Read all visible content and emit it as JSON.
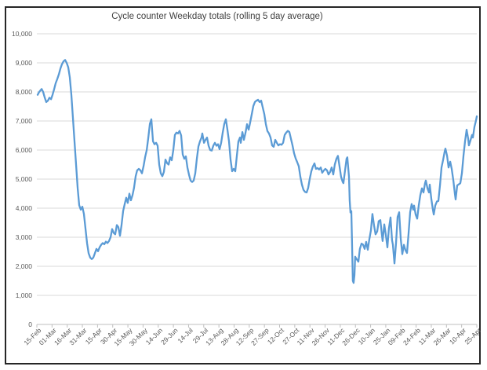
{
  "colors": {
    "background": "#FFFFFF",
    "border": "#262626",
    "grid": "#D9D9D9",
    "axis": "#BFBFBF",
    "tick_text": "#595959",
    "title_text": "#404040",
    "line": "#5B9BD5"
  },
  "chart_data": {
    "type": "line",
    "title": "Cycle counter Weekday totals (rolling 5 day average)",
    "legend": "none",
    "grid": "horizontal",
    "ylim": [
      0,
      10000
    ],
    "y_tick_interval": 1000,
    "y_tick_values": [
      0,
      1000,
      2000,
      3000,
      4000,
      5000,
      6000,
      7000,
      8000,
      9000,
      10000
    ],
    "y_tick_labels": [
      "0",
      "1,000",
      "2,000",
      "3,000",
      "4,000",
      "5,000",
      "6,000",
      "7,000",
      "8,000",
      "9,000",
      "10,000"
    ],
    "x_tick_labels": [
      "15-Feb",
      "01-Mar",
      "16-Mar",
      "31-Mar",
      "15-Apr",
      "30-Apr",
      "15-May",
      "30-May",
      "14-Jun",
      "29-Jun",
      "14-Jul",
      "29-Jul",
      "13-Aug",
      "28-Aug",
      "12-Sep",
      "27-Sep",
      "12-Oct",
      "27-Oct",
      "11-Nov",
      "26-Nov",
      "11-Dec",
      "26-Dec",
      "10-Jan",
      "25-Jan",
      "09-Feb",
      "24-Feb",
      "11-Mar",
      "26-Mar",
      "10-Apr",
      "25-Apr"
    ],
    "x_span_days": 435,
    "x_tick_step_days": 15,
    "line_color": "#5B9BD5",
    "samples": [
      [
        0.8,
        7900
      ],
      [
        2.3,
        8000
      ],
      [
        4.7,
        8100
      ],
      [
        6.2,
        8000
      ],
      [
        7.8,
        7800
      ],
      [
        9.3,
        7650
      ],
      [
        10.9,
        7700
      ],
      [
        12.4,
        7800
      ],
      [
        14,
        7750
      ],
      [
        15.5,
        7900
      ],
      [
        17.1,
        8100
      ],
      [
        18.6,
        8300
      ],
      [
        20.2,
        8450
      ],
      [
        21.7,
        8600
      ],
      [
        23.3,
        8800
      ],
      [
        24.8,
        8950
      ],
      [
        26.4,
        9050
      ],
      [
        27.9,
        9100
      ],
      [
        29.5,
        9000
      ],
      [
        31,
        8850
      ],
      [
        32.6,
        8500
      ],
      [
        34.1,
        7900
      ],
      [
        35.7,
        7100
      ],
      [
        37.2,
        6300
      ],
      [
        38.8,
        5500
      ],
      [
        40.3,
        4700
      ],
      [
        41.9,
        4100
      ],
      [
        43.4,
        3950
      ],
      [
        45,
        4050
      ],
      [
        46.5,
        3800
      ],
      [
        48.1,
        3300
      ],
      [
        49.6,
        2800
      ],
      [
        51.2,
        2450
      ],
      [
        52.7,
        2300
      ],
      [
        54.3,
        2250
      ],
      [
        55.8,
        2300
      ],
      [
        57.4,
        2450
      ],
      [
        58.9,
        2600
      ],
      [
        60.5,
        2520
      ],
      [
        62,
        2650
      ],
      [
        63.6,
        2740
      ],
      [
        65.1,
        2800
      ],
      [
        66.7,
        2760
      ],
      [
        68.2,
        2850
      ],
      [
        69.8,
        2800
      ],
      [
        71.3,
        2870
      ],
      [
        72.9,
        3000
      ],
      [
        74.4,
        3280
      ],
      [
        76,
        3150
      ],
      [
        77.5,
        3100
      ],
      [
        79.1,
        3420
      ],
      [
        80.6,
        3350
      ],
      [
        82.2,
        3050
      ],
      [
        83.7,
        3400
      ],
      [
        85.3,
        3900
      ],
      [
        86.8,
        4130
      ],
      [
        88.4,
        4360
      ],
      [
        89.9,
        4180
      ],
      [
        91.5,
        4500
      ],
      [
        93,
        4270
      ],
      [
        94.6,
        4450
      ],
      [
        96.1,
        4700
      ],
      [
        97.7,
        5100
      ],
      [
        99.2,
        5300
      ],
      [
        100.8,
        5350
      ],
      [
        102.4,
        5300
      ],
      [
        103.9,
        5200
      ],
      [
        105.5,
        5450
      ],
      [
        107,
        5750
      ],
      [
        108.6,
        6000
      ],
      [
        110.1,
        6400
      ],
      [
        111.7,
        6900
      ],
      [
        113.2,
        7060
      ],
      [
        114.8,
        6300
      ],
      [
        116.3,
        6200
      ],
      [
        117.9,
        6250
      ],
      [
        119.4,
        6150
      ],
      [
        121,
        5500
      ],
      [
        122.5,
        5200
      ],
      [
        124.1,
        5100
      ],
      [
        125.6,
        5250
      ],
      [
        127.2,
        5670
      ],
      [
        128.7,
        5550
      ],
      [
        130.3,
        5500
      ],
      [
        131.8,
        5750
      ],
      [
        133.4,
        5650
      ],
      [
        134.9,
        6000
      ],
      [
        136.5,
        6520
      ],
      [
        138,
        6600
      ],
      [
        139.6,
        6570
      ],
      [
        141.1,
        6660
      ],
      [
        142.7,
        6500
      ],
      [
        144.2,
        5850
      ],
      [
        145.8,
        5700
      ],
      [
        147.3,
        5780
      ],
      [
        148.9,
        5400
      ],
      [
        150.4,
        5150
      ],
      [
        152,
        4950
      ],
      [
        153.5,
        4900
      ],
      [
        155.1,
        4950
      ],
      [
        156.6,
        5200
      ],
      [
        158.2,
        5700
      ],
      [
        159.7,
        6120
      ],
      [
        161.3,
        6300
      ],
      [
        162.8,
        6430
      ],
      [
        163.6,
        6570
      ],
      [
        165.2,
        6250
      ],
      [
        166.7,
        6350
      ],
      [
        168.3,
        6430
      ],
      [
        169.8,
        6150
      ],
      [
        171.4,
        6000
      ],
      [
        172.9,
        5980
      ],
      [
        174.5,
        6150
      ],
      [
        176,
        6250
      ],
      [
        177.6,
        6150
      ],
      [
        179.1,
        6200
      ],
      [
        180.7,
        6030
      ],
      [
        182.2,
        6250
      ],
      [
        183.8,
        6600
      ],
      [
        185.3,
        6900
      ],
      [
        186.9,
        7060
      ],
      [
        188.4,
        6700
      ],
      [
        190,
        6300
      ],
      [
        191.5,
        5670
      ],
      [
        193.1,
        5270
      ],
      [
        194.6,
        5350
      ],
      [
        196.2,
        5270
      ],
      [
        197.7,
        5800
      ],
      [
        199.3,
        6300
      ],
      [
        200.8,
        6430
      ],
      [
        201.6,
        6250
      ],
      [
        203.2,
        6620
      ],
      [
        204.7,
        6350
      ],
      [
        206.3,
        6600
      ],
      [
        207.8,
        6890
      ],
      [
        209.4,
        6700
      ],
      [
        210.9,
        6950
      ],
      [
        212.5,
        7240
      ],
      [
        214,
        7510
      ],
      [
        215.6,
        7650
      ],
      [
        217.1,
        7700
      ],
      [
        218.7,
        7730
      ],
      [
        220.2,
        7650
      ],
      [
        221.8,
        7700
      ],
      [
        223.3,
        7470
      ],
      [
        224.9,
        7240
      ],
      [
        226.4,
        6890
      ],
      [
        228,
        6650
      ],
      [
        229.5,
        6570
      ],
      [
        231.1,
        6430
      ],
      [
        232.6,
        6160
      ],
      [
        234.2,
        6110
      ],
      [
        235.7,
        6350
      ],
      [
        237.3,
        6250
      ],
      [
        238.8,
        6160
      ],
      [
        240.4,
        6200
      ],
      [
        241.9,
        6180
      ],
      [
        243.5,
        6250
      ],
      [
        245,
        6520
      ],
      [
        246.6,
        6600
      ],
      [
        248.1,
        6660
      ],
      [
        249.7,
        6620
      ],
      [
        251.2,
        6390
      ],
      [
        252.8,
        6160
      ],
      [
        254.3,
        5890
      ],
      [
        255.9,
        5710
      ],
      [
        257.4,
        5580
      ],
      [
        259,
        5440
      ],
      [
        260.5,
        5080
      ],
      [
        262.1,
        4810
      ],
      [
        263.6,
        4630
      ],
      [
        265.2,
        4560
      ],
      [
        266.7,
        4540
      ],
      [
        268.3,
        4700
      ],
      [
        269.8,
        5000
      ],
      [
        271.4,
        5270
      ],
      [
        272.9,
        5430
      ],
      [
        274.5,
        5540
      ],
      [
        276,
        5350
      ],
      [
        277.6,
        5380
      ],
      [
        279.1,
        5330
      ],
      [
        280.7,
        5400
      ],
      [
        282.2,
        5220
      ],
      [
        283.8,
        5300
      ],
      [
        285.3,
        5350
      ],
      [
        286.9,
        5300
      ],
      [
        288.4,
        5160
      ],
      [
        290,
        5250
      ],
      [
        291.5,
        5400
      ],
      [
        293.1,
        5160
      ],
      [
        294.6,
        5500
      ],
      [
        296.2,
        5700
      ],
      [
        297.7,
        5800
      ],
      [
        299.3,
        5430
      ],
      [
        300.8,
        5080
      ],
      [
        302.4,
        4900
      ],
      [
        303.1,
        4860
      ],
      [
        304.7,
        5300
      ],
      [
        306.2,
        5700
      ],
      [
        307,
        5750
      ],
      [
        308.6,
        5080
      ],
      [
        309.3,
        4270
      ],
      [
        310.1,
        3850
      ],
      [
        310.9,
        3900
      ],
      [
        311.6,
        2800
      ],
      [
        312.4,
        1500
      ],
      [
        313.2,
        1430
      ],
      [
        314,
        1700
      ],
      [
        314.7,
        2330
      ],
      [
        316.3,
        2240
      ],
      [
        317.9,
        2160
      ],
      [
        319.4,
        2600
      ],
      [
        321,
        2780
      ],
      [
        322.5,
        2750
      ],
      [
        324.1,
        2600
      ],
      [
        325.6,
        2840
      ],
      [
        327.2,
        2570
      ],
      [
        328.7,
        2920
      ],
      [
        330.3,
        3240
      ],
      [
        331.8,
        3800
      ],
      [
        333.4,
        3400
      ],
      [
        334.9,
        3100
      ],
      [
        336.5,
        3200
      ],
      [
        338,
        3550
      ],
      [
        339.6,
        3590
      ],
      [
        341.1,
        3100
      ],
      [
        341.9,
        2870
      ],
      [
        343.5,
        3440
      ],
      [
        345,
        3100
      ],
      [
        346.6,
        2650
      ],
      [
        348.1,
        3300
      ],
      [
        349.7,
        3680
      ],
      [
        351.2,
        2900
      ],
      [
        352,
        2740
      ],
      [
        353.6,
        2100
      ],
      [
        355.1,
        2800
      ],
      [
        356.7,
        3700
      ],
      [
        358.2,
        3860
      ],
      [
        359.8,
        2950
      ],
      [
        361.3,
        2420
      ],
      [
        362.9,
        2740
      ],
      [
        364.4,
        2550
      ],
      [
        366,
        2460
      ],
      [
        367.5,
        3100
      ],
      [
        369.1,
        3860
      ],
      [
        370.6,
        4140
      ],
      [
        372.2,
        3950
      ],
      [
        373,
        4090
      ],
      [
        374.5,
        3780
      ],
      [
        376.1,
        3640
      ],
      [
        377.6,
        4100
      ],
      [
        379.2,
        4450
      ],
      [
        380.7,
        4680
      ],
      [
        382.3,
        4540
      ],
      [
        383.8,
        4860
      ],
      [
        384.6,
        4950
      ],
      [
        386.2,
        4680
      ],
      [
        387.7,
        4540
      ],
      [
        388.5,
        4810
      ],
      [
        390,
        4320
      ],
      [
        391.6,
        3950
      ],
      [
        392.4,
        3780
      ],
      [
        393.9,
        4090
      ],
      [
        395.5,
        4230
      ],
      [
        397,
        4250
      ],
      [
        398.6,
        4800
      ],
      [
        400.1,
        5400
      ],
      [
        401.7,
        5670
      ],
      [
        403.2,
        5950
      ],
      [
        404,
        6050
      ],
      [
        405.6,
        5800
      ],
      [
        407.1,
        5400
      ],
      [
        408.7,
        5600
      ],
      [
        410.2,
        5350
      ],
      [
        411.8,
        4950
      ],
      [
        413.3,
        4500
      ],
      [
        414.1,
        4300
      ],
      [
        415.6,
        4780
      ],
      [
        417.2,
        4820
      ],
      [
        418.7,
        4860
      ],
      [
        420.3,
        5200
      ],
      [
        421.8,
        5800
      ],
      [
        423.4,
        6300
      ],
      [
        424.9,
        6700
      ],
      [
        426.5,
        6390
      ],
      [
        427.2,
        6160
      ],
      [
        428.8,
        6340
      ],
      [
        430.3,
        6520
      ],
      [
        431.1,
        6430
      ],
      [
        432.7,
        6800
      ],
      [
        434.2,
        7020
      ],
      [
        435,
        7160
      ]
    ]
  }
}
